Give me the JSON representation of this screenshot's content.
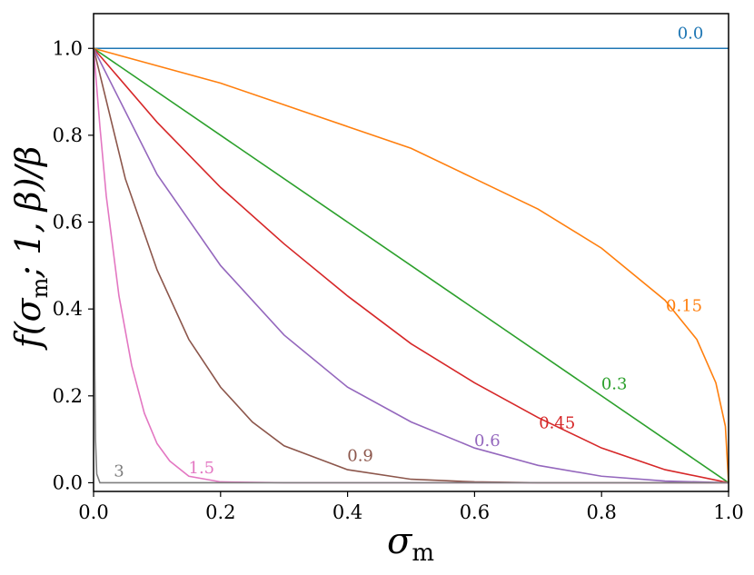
{
  "chart_data": {
    "type": "line",
    "xlabel": "σ",
    "xlabel_sub": "m",
    "ylabel": "f(σ",
    "ylabel_sub": "m",
    "ylabel_rest": "; 1, β)/β",
    "xlim": [
      0.0,
      1.0
    ],
    "ylim": [
      -0.02,
      1.08
    ],
    "xticks": [
      {
        "value": 0.0,
        "label": "0.0"
      },
      {
        "value": 0.2,
        "label": "0.2"
      },
      {
        "value": 0.4,
        "label": "0.4"
      },
      {
        "value": 0.6,
        "label": "0.6"
      },
      {
        "value": 0.8,
        "label": "0.8"
      },
      {
        "value": 1.0,
        "label": "1.0"
      }
    ],
    "yticks": [
      {
        "value": 0.0,
        "label": "0.0"
      },
      {
        "value": 0.2,
        "label": "0.2"
      },
      {
        "value": 0.4,
        "label": "0.4"
      },
      {
        "value": 0.6,
        "label": "0.6"
      },
      {
        "value": 0.8,
        "label": "0.8"
      },
      {
        "value": 1.0,
        "label": "1.0"
      }
    ],
    "grid": false,
    "series": [
      {
        "name": "0.0",
        "color": "#1f77b4",
        "x": [
          0.0,
          1.0
        ],
        "y": [
          1.0,
          1.0
        ],
        "label": {
          "text": "0.0",
          "x": 0.94,
          "y": 1.022
        }
      },
      {
        "name": "0.15",
        "color": "#ff7f0e",
        "x": [
          0.0,
          0.1,
          0.2,
          0.3,
          0.4,
          0.5,
          0.6,
          0.7,
          0.8,
          0.9,
          0.95,
          0.98,
          0.995,
          1.0
        ],
        "y": [
          1.0,
          0.96,
          0.92,
          0.87,
          0.82,
          0.77,
          0.7,
          0.63,
          0.54,
          0.42,
          0.33,
          0.23,
          0.13,
          0.0
        ],
        "label": {
          "text": "0.15",
          "x": 0.93,
          "y": 0.395
        }
      },
      {
        "name": "0.3",
        "color": "#2ca02c",
        "x": [
          0.0,
          1.0
        ],
        "y": [
          1.0,
          0.0
        ],
        "label": {
          "text": "0.3",
          "x": 0.82,
          "y": 0.215
        }
      },
      {
        "name": "0.45",
        "color": "#d62728",
        "x": [
          0.0,
          0.1,
          0.2,
          0.3,
          0.4,
          0.5,
          0.6,
          0.7,
          0.8,
          0.9,
          1.0
        ],
        "y": [
          1.0,
          0.83,
          0.68,
          0.55,
          0.43,
          0.32,
          0.23,
          0.15,
          0.08,
          0.03,
          0.0
        ],
        "label": {
          "text": "0.45",
          "x": 0.73,
          "y": 0.125
        }
      },
      {
        "name": "0.6",
        "color": "#9467bd",
        "x": [
          0.0,
          0.1,
          0.2,
          0.3,
          0.4,
          0.5,
          0.6,
          0.7,
          0.8,
          0.9,
          1.0
        ],
        "y": [
          1.0,
          0.71,
          0.5,
          0.34,
          0.22,
          0.14,
          0.08,
          0.04,
          0.015,
          0.004,
          0.0
        ],
        "label": {
          "text": "0.6",
          "x": 0.62,
          "y": 0.085
        }
      },
      {
        "name": "0.9",
        "color": "#8c564b",
        "x": [
          0.0,
          0.05,
          0.1,
          0.15,
          0.2,
          0.25,
          0.3,
          0.4,
          0.5,
          0.6,
          0.7,
          1.0
        ],
        "y": [
          1.0,
          0.7,
          0.49,
          0.33,
          0.22,
          0.14,
          0.085,
          0.03,
          0.008,
          0.002,
          0.0,
          0.0
        ],
        "label": {
          "text": "0.9",
          "x": 0.42,
          "y": 0.05
        }
      },
      {
        "name": "1.5",
        "color": "#e377c2",
        "x": [
          0.0,
          0.01,
          0.02,
          0.04,
          0.06,
          0.08,
          0.1,
          0.12,
          0.15,
          0.2,
          0.3,
          1.0
        ],
        "y": [
          1.0,
          0.82,
          0.66,
          0.43,
          0.27,
          0.16,
          0.09,
          0.05,
          0.015,
          0.002,
          0.0,
          0.0
        ],
        "label": {
          "text": "1.5",
          "x": 0.17,
          "y": 0.022
        }
      },
      {
        "name": "3",
        "color": "#7f7f7f",
        "x": [
          0.0,
          0.001,
          0.002,
          0.003,
          0.005,
          0.01,
          0.02,
          1.0
        ],
        "y": [
          1.0,
          0.55,
          0.25,
          0.1,
          0.02,
          0.0,
          0.0,
          0.0
        ],
        "label": {
          "text": "3",
          "x": 0.04,
          "y": 0.015
        }
      }
    ]
  }
}
